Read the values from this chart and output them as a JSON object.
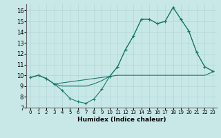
{
  "xlabel": "Humidex (Indice chaleur)",
  "bg_color": "#c8e8e8",
  "line_color": "#1a7a6a",
  "xlim": [
    -0.5,
    23.5
  ],
  "ylim": [
    7,
    16.6
  ],
  "xticks": [
    0,
    1,
    2,
    3,
    4,
    5,
    6,
    7,
    8,
    9,
    10,
    11,
    12,
    13,
    14,
    15,
    16,
    17,
    18,
    19,
    20,
    21,
    22,
    23
  ],
  "yticks": [
    7,
    8,
    9,
    10,
    11,
    12,
    13,
    14,
    15,
    16
  ],
  "line1_markers": {
    "x": [
      0,
      1,
      2,
      3,
      4,
      5,
      6,
      7,
      8,
      9,
      10,
      11,
      12,
      13,
      14,
      15,
      16,
      17,
      18,
      19,
      20,
      21,
      22,
      23
    ],
    "y": [
      9.8,
      10.0,
      9.7,
      9.2,
      8.6,
      7.85,
      7.55,
      7.4,
      7.8,
      8.7,
      9.9,
      10.8,
      12.4,
      13.65,
      15.2,
      15.2,
      14.8,
      15.0,
      16.3,
      15.2,
      14.1,
      12.1,
      10.8,
      10.4
    ]
  },
  "line2": {
    "x": [
      0,
      1,
      2,
      3,
      4,
      5,
      6,
      7,
      8,
      9,
      10,
      11,
      12,
      13,
      14,
      15,
      16,
      17,
      18,
      19,
      20,
      21,
      22,
      23
    ],
    "y": [
      9.8,
      10.0,
      9.7,
      9.2,
      9.0,
      9.0,
      9.0,
      9.0,
      9.2,
      9.5,
      9.9,
      10.0,
      10.0,
      10.0,
      10.0,
      10.0,
      10.0,
      10.0,
      10.0,
      10.0,
      10.0,
      10.0,
      10.0,
      10.3
    ]
  },
  "line3": {
    "x": [
      0,
      1,
      2,
      3,
      10,
      11,
      12,
      13,
      14,
      15,
      16,
      17,
      18,
      19,
      20,
      21,
      22,
      23
    ],
    "y": [
      9.8,
      10.0,
      9.7,
      9.2,
      9.9,
      10.8,
      12.4,
      13.65,
      15.2,
      15.2,
      14.8,
      15.0,
      16.3,
      15.2,
      14.1,
      12.1,
      10.8,
      10.4
    ]
  }
}
